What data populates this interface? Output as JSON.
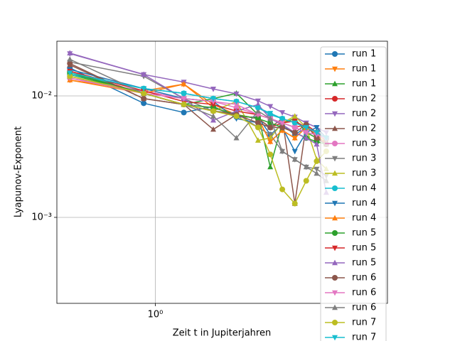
{
  "chart_data": {
    "type": "line",
    "xlabel": "Zeit t in Jupiterjahren",
    "ylabel": "Lyapunov-Exponent",
    "xscale": "log",
    "yscale": "log",
    "grid": true,
    "legend": "upper right",
    "xlim": [
      0.45,
      6.57
    ],
    "ylim": [
      0.000196,
      0.0282
    ],
    "xticks": [
      {
        "value": 1,
        "label": "10⁰"
      }
    ],
    "yticks": [
      {
        "value": 0.001,
        "label": "10⁻³"
      },
      {
        "value": 0.01,
        "label": "10⁻²"
      }
    ],
    "x": [
      0.5,
      0.91,
      1.26,
      1.6,
      1.93,
      2.3,
      2.54,
      2.8,
      3.1,
      3.4,
      3.7,
      4.0
    ],
    "series": [
      {
        "name": "run 1",
        "color": "#1f77b4",
        "marker": "o",
        "values": [
          0.017,
          0.0087,
          0.0073,
          0.0082,
          0.0067,
          0.0067,
          0.0048,
          0.0058,
          0.0048,
          0.0055,
          0.005,
          0.0045
        ]
      },
      {
        "name": "run 1",
        "color": "#ff7f0e",
        "marker": "v",
        "values": [
          0.0135,
          0.011,
          0.0125,
          0.0085,
          0.007,
          0.0065,
          0.0042,
          0.0052,
          0.0045,
          0.0055,
          0.005,
          0.0042
        ]
      },
      {
        "name": "run 1",
        "color": "#2ca02c",
        "marker": "^",
        "values": [
          0.015,
          0.0105,
          0.0085,
          0.0095,
          0.0105,
          0.007,
          0.0026,
          0.006,
          0.0065,
          0.005,
          0.0045,
          0.004
        ]
      },
      {
        "name": "run 2",
        "color": "#d62728",
        "marker": "o",
        "values": [
          0.016,
          0.0105,
          0.0085,
          0.0075,
          0.007,
          0.0065,
          0.0055,
          0.006,
          0.0055,
          0.0058,
          0.005,
          0.0045
        ]
      },
      {
        "name": "run 2",
        "color": "#9467bd",
        "marker": "v",
        "values": [
          0.0223,
          0.015,
          0.013,
          0.0114,
          0.0104,
          0.0091,
          0.0082,
          0.0073,
          0.0067,
          0.006,
          0.0055,
          0.005
        ]
      },
      {
        "name": "run 2",
        "color": "#8c564b",
        "marker": "^",
        "values": [
          0.018,
          0.0095,
          0.0085,
          0.0053,
          0.007,
          0.0065,
          0.0055,
          0.0065,
          0.0013,
          0.0058,
          0.0045,
          0.0042
        ]
      },
      {
        "name": "run 3",
        "color": "#e377c2",
        "marker": "o",
        "values": [
          0.014,
          0.011,
          0.0095,
          0.009,
          0.008,
          0.007,
          0.0065,
          0.006,
          0.0055,
          0.005,
          0.0048,
          0.0045
        ]
      },
      {
        "name": "run 3",
        "color": "#7f7f7f",
        "marker": "v",
        "values": [
          0.019,
          0.0145,
          0.0095,
          0.0075,
          0.0072,
          0.0055,
          0.0048,
          0.0035,
          0.003,
          0.0026,
          0.0025,
          0.0022
        ]
      },
      {
        "name": "run 3",
        "color": "#bcbd22",
        "marker": "^",
        "values": [
          0.0145,
          0.0105,
          0.0085,
          0.0075,
          0.009,
          0.0043,
          0.0045,
          0.006,
          0.0068,
          0.0055,
          0.003,
          0.0025
        ]
      },
      {
        "name": "run 4",
        "color": "#17becf",
        "marker": "o",
        "values": [
          0.015,
          0.0115,
          0.0105,
          0.0095,
          0.009,
          0.008,
          0.007,
          0.0065,
          0.006,
          0.0055,
          0.005,
          0.0045
        ]
      },
      {
        "name": "run 4",
        "color": "#1f77b4",
        "marker": "v",
        "values": [
          0.0165,
          0.0115,
          0.0095,
          0.009,
          0.0065,
          0.006,
          0.0055,
          0.0055,
          0.0035,
          0.005,
          0.0055,
          0.0045
        ]
      },
      {
        "name": "run 4",
        "color": "#ff7f0e",
        "marker": "^",
        "values": [
          0.0135,
          0.0105,
          0.0125,
          0.008,
          0.007,
          0.0065,
          0.0042,
          0.0052,
          0.0045,
          0.0055,
          0.0048,
          0.004
        ]
      },
      {
        "name": "run 5",
        "color": "#2ca02c",
        "marker": "o",
        "values": [
          0.0155,
          0.0105,
          0.0085,
          0.008,
          0.007,
          0.0065,
          0.006,
          0.0055,
          0.005,
          0.0045,
          0.0042,
          0.004
        ]
      },
      {
        "name": "run 5",
        "color": "#d62728",
        "marker": "v",
        "values": [
          0.016,
          0.011,
          0.009,
          0.0085,
          0.0075,
          0.007,
          0.0065,
          0.006,
          0.0062,
          0.0055,
          0.005,
          0.0045
        ]
      },
      {
        "name": "run 5",
        "color": "#9467bd",
        "marker": "^",
        "values": [
          0.0225,
          0.015,
          0.0095,
          0.0063,
          0.0075,
          0.0085,
          0.0065,
          0.0058,
          0.005,
          0.0045,
          0.004,
          0.0016
        ]
      },
      {
        "name": "run 6",
        "color": "#8c564b",
        "marker": "o",
        "values": [
          0.0185,
          0.0095,
          0.0085,
          0.0075,
          0.007,
          0.006,
          0.0055,
          0.0055,
          0.005,
          0.0058,
          0.0045,
          0.004
        ]
      },
      {
        "name": "run 6",
        "color": "#e377c2",
        "marker": "v",
        "values": [
          0.014,
          0.0105,
          0.0095,
          0.009,
          0.0085,
          0.007,
          0.0065,
          0.006,
          0.0055,
          0.005,
          0.0048,
          0.0044
        ]
      },
      {
        "name": "run 6",
        "color": "#7f7f7f",
        "marker": "^",
        "values": [
          0.02,
          0.0105,
          0.0085,
          0.0068,
          0.0045,
          0.0075,
          0.0065,
          0.0035,
          0.003,
          0.0026,
          0.0023,
          0.002
        ]
      },
      {
        "name": "run 7",
        "color": "#bcbd22",
        "marker": "o",
        "values": [
          0.0145,
          0.0105,
          0.0085,
          0.0075,
          0.0068,
          0.0055,
          0.0033,
          0.0017,
          0.0013,
          0.002,
          0.0029,
          0.0035
        ]
      },
      {
        "name": "run 7",
        "color": "#17becf",
        "marker": "v",
        "values": [
          0.0155,
          0.0115,
          0.0105,
          0.0095,
          0.009,
          0.008,
          0.0072,
          0.0065,
          0.006,
          0.0055,
          0.005,
          0.0045
        ]
      }
    ]
  }
}
